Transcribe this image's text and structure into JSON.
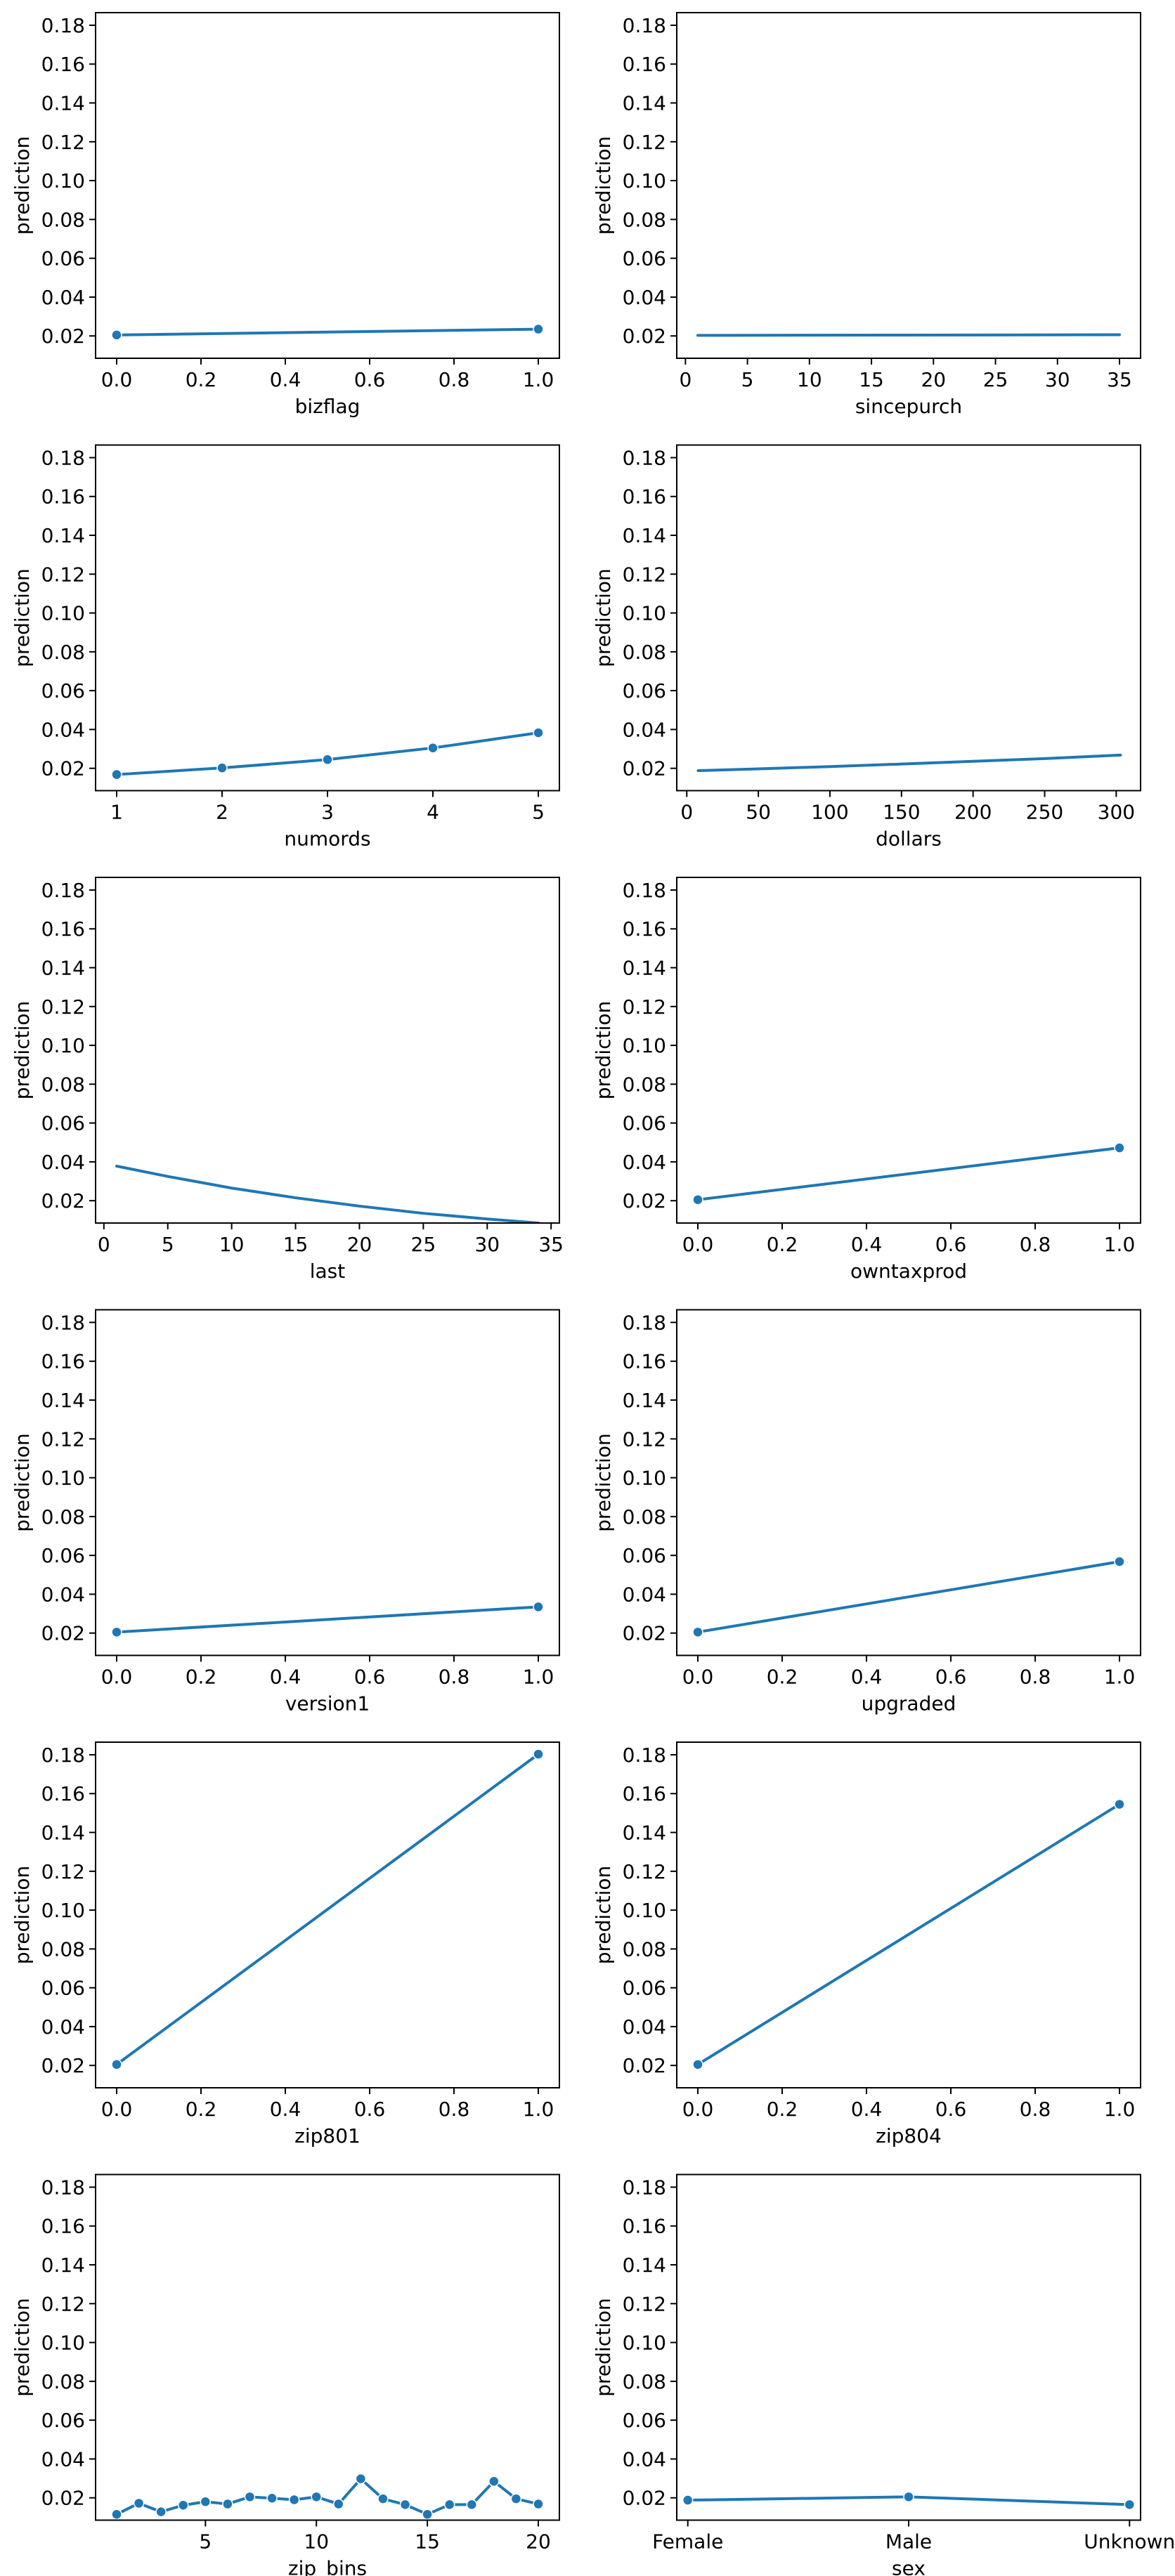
{
  "style": {
    "line_color": "#1f77b4"
  },
  "chart_data": [
    {
      "type": "line",
      "xlabel": "bizflag",
      "ylabel": "prediction",
      "ylim": [
        0.0085,
        0.1865
      ],
      "xlim": [
        -0.05,
        1.05
      ],
      "yticks": [
        0.02,
        0.04,
        0.06,
        0.08,
        0.1,
        0.12,
        0.14,
        0.16,
        0.18
      ],
      "xticks": [
        0.0,
        0.2,
        0.4,
        0.6,
        0.8,
        1.0
      ],
      "markers": true,
      "x": [
        0,
        1
      ],
      "y": [
        0.0205,
        0.0235
      ]
    },
    {
      "type": "line",
      "xlabel": "sincepurch",
      "ylabel": "prediction",
      "ylim": [
        0.0085,
        0.1865
      ],
      "xlim": [
        -0.7,
        36.7
      ],
      "yticks": [
        0.02,
        0.04,
        0.06,
        0.08,
        0.1,
        0.12,
        0.14,
        0.16,
        0.18
      ],
      "xticks": [
        0,
        5,
        10,
        15,
        20,
        25,
        30,
        35
      ],
      "markers": false,
      "x": [
        1,
        35
      ],
      "y": [
        0.0203,
        0.0206
      ]
    },
    {
      "type": "line",
      "xlabel": "numords",
      "ylabel": "prediction",
      "ylim": [
        0.0085,
        0.1865
      ],
      "xlim": [
        0.8,
        5.2
      ],
      "yticks": [
        0.02,
        0.04,
        0.06,
        0.08,
        0.1,
        0.12,
        0.14,
        0.16,
        0.18
      ],
      "xticks": [
        1,
        2,
        3,
        4,
        5
      ],
      "markers": true,
      "x": [
        1,
        2,
        3,
        4,
        5
      ],
      "y": [
        0.0168,
        0.0202,
        0.0245,
        0.0305,
        0.0383
      ]
    },
    {
      "type": "line",
      "xlabel": "dollars",
      "ylabel": "prediction",
      "ylim": [
        0.0085,
        0.1865
      ],
      "xlim": [
        -7,
        317
      ],
      "yticks": [
        0.02,
        0.04,
        0.06,
        0.08,
        0.1,
        0.12,
        0.14,
        0.16,
        0.18
      ],
      "xticks": [
        0,
        50,
        100,
        150,
        200,
        250,
        300
      ],
      "markers": false,
      "x": [
        8,
        50,
        100,
        150,
        200,
        250,
        303
      ],
      "y": [
        0.0188,
        0.0197,
        0.0209,
        0.0222,
        0.0236,
        0.025,
        0.0268
      ]
    },
    {
      "type": "line",
      "xlabel": "last",
      "ylabel": "prediction",
      "ylim": [
        0.0085,
        0.1865
      ],
      "xlim": [
        -0.65,
        35.65
      ],
      "yticks": [
        0.02,
        0.04,
        0.06,
        0.08,
        0.1,
        0.12,
        0.14,
        0.16,
        0.18
      ],
      "xticks": [
        0,
        5,
        10,
        15,
        20,
        25,
        30,
        35
      ],
      "markers": false,
      "x": [
        1,
        5,
        10,
        15,
        20,
        25,
        30,
        34
      ],
      "y": [
        0.0378,
        0.0325,
        0.0265,
        0.0215,
        0.0172,
        0.0135,
        0.0106,
        0.0085
      ]
    },
    {
      "type": "line",
      "xlabel": "owntaxprod",
      "ylabel": "prediction",
      "ylim": [
        0.0085,
        0.1865
      ],
      "xlim": [
        -0.05,
        1.05
      ],
      "yticks": [
        0.02,
        0.04,
        0.06,
        0.08,
        0.1,
        0.12,
        0.14,
        0.16,
        0.18
      ],
      "xticks": [
        0.0,
        0.2,
        0.4,
        0.6,
        0.8,
        1.0
      ],
      "markers": true,
      "x": [
        0,
        1
      ],
      "y": [
        0.0205,
        0.0472
      ]
    },
    {
      "type": "line",
      "xlabel": "version1",
      "ylabel": "prediction",
      "ylim": [
        0.0085,
        0.1865
      ],
      "xlim": [
        -0.05,
        1.05
      ],
      "yticks": [
        0.02,
        0.04,
        0.06,
        0.08,
        0.1,
        0.12,
        0.14,
        0.16,
        0.18
      ],
      "xticks": [
        0.0,
        0.2,
        0.4,
        0.6,
        0.8,
        1.0
      ],
      "markers": true,
      "x": [
        0,
        1
      ],
      "y": [
        0.0205,
        0.0335
      ]
    },
    {
      "type": "line",
      "xlabel": "upgraded",
      "ylabel": "prediction",
      "ylim": [
        0.0085,
        0.1865
      ],
      "xlim": [
        -0.05,
        1.05
      ],
      "yticks": [
        0.02,
        0.04,
        0.06,
        0.08,
        0.1,
        0.12,
        0.14,
        0.16,
        0.18
      ],
      "xticks": [
        0.0,
        0.2,
        0.4,
        0.6,
        0.8,
        1.0
      ],
      "markers": true,
      "x": [
        0,
        1
      ],
      "y": [
        0.0205,
        0.0568
      ]
    },
    {
      "type": "line",
      "xlabel": "zip801",
      "ylabel": "prediction",
      "ylim": [
        0.0085,
        0.1865
      ],
      "xlim": [
        -0.05,
        1.05
      ],
      "yticks": [
        0.02,
        0.04,
        0.06,
        0.08,
        0.1,
        0.12,
        0.14,
        0.16,
        0.18
      ],
      "xticks": [
        0.0,
        0.2,
        0.4,
        0.6,
        0.8,
        1.0
      ],
      "markers": true,
      "x": [
        0,
        1
      ],
      "y": [
        0.0205,
        0.1803
      ]
    },
    {
      "type": "line",
      "xlabel": "zip804",
      "ylabel": "prediction",
      "ylim": [
        0.0085,
        0.1865
      ],
      "xlim": [
        -0.05,
        1.05
      ],
      "yticks": [
        0.02,
        0.04,
        0.06,
        0.08,
        0.1,
        0.12,
        0.14,
        0.16,
        0.18
      ],
      "xticks": [
        0.0,
        0.2,
        0.4,
        0.6,
        0.8,
        1.0
      ],
      "markers": true,
      "x": [
        0,
        1
      ],
      "y": [
        0.0205,
        0.1545
      ]
    },
    {
      "type": "line",
      "xlabel": "zip_bins",
      "ylabel": "prediction",
      "ylim": [
        0.0085,
        0.1865
      ],
      "xlim": [
        0.05,
        20.95
      ],
      "yticks": [
        0.02,
        0.04,
        0.06,
        0.08,
        0.1,
        0.12,
        0.14,
        0.16,
        0.18
      ],
      "xticks": [
        5,
        10,
        15,
        20
      ],
      "markers": true,
      "x": [
        1,
        2,
        3,
        4,
        5,
        6,
        7,
        8,
        9,
        10,
        11,
        12,
        13,
        14,
        15,
        16,
        17,
        18,
        19,
        20
      ],
      "y": [
        0.0115,
        0.0172,
        0.0128,
        0.0162,
        0.018,
        0.0168,
        0.0205,
        0.0198,
        0.019,
        0.0205,
        0.0168,
        0.0298,
        0.0195,
        0.0165,
        0.0115,
        0.0165,
        0.0165,
        0.0285,
        0.0195,
        0.0168
      ]
    },
    {
      "type": "line",
      "xlabel": "sex",
      "ylabel": "prediction",
      "ylim": [
        0.0085,
        0.1865
      ],
      "xlim": [
        -0.05,
        2.05
      ],
      "yticks": [
        0.02,
        0.04,
        0.06,
        0.08,
        0.1,
        0.12,
        0.14,
        0.16,
        0.18
      ],
      "categories": [
        "Female",
        "Male",
        "Unknown"
      ],
      "markers": true,
      "x": [
        0,
        1,
        2
      ],
      "y": [
        0.0188,
        0.0205,
        0.0165
      ]
    }
  ]
}
